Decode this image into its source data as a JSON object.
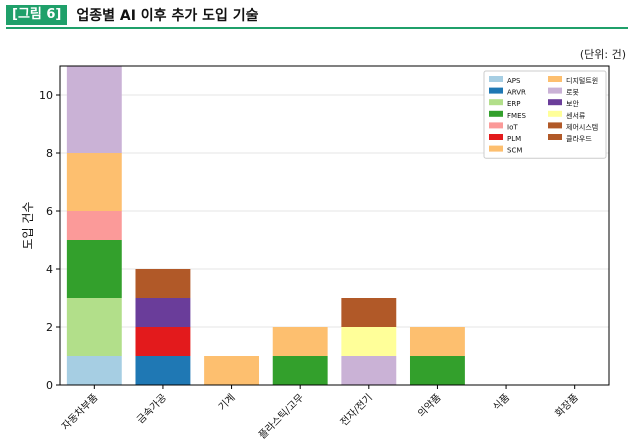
{
  "figure": {
    "tag": "[그림 6]",
    "title": "업종별 AI 이후 추가 도입 기술",
    "unit_note": "(단위: 건)"
  },
  "colors": {
    "header_accent": "#1fa06a"
  },
  "chart_data": {
    "type": "bar",
    "stacked": true,
    "ylabel": "도입 건수",
    "xlabel": "",
    "ylim": [
      0,
      11
    ],
    "yticks": [
      0,
      2,
      4,
      6,
      8,
      10
    ],
    "grid": true,
    "legend_position": "top-right",
    "categories": [
      "자동차부품",
      "금속가공",
      "기계",
      "플라스틱/고무",
      "전자/전기",
      "의약품",
      "식품",
      "화장품"
    ],
    "series": [
      {
        "name": "APS",
        "color": "#a6cee3",
        "values": [
          1,
          0,
          0,
          0,
          0,
          0,
          0,
          0
        ]
      },
      {
        "name": "ARVR",
        "color": "#1f78b4",
        "values": [
          0,
          1,
          0,
          0,
          0,
          0,
          0,
          0
        ]
      },
      {
        "name": "ERP",
        "color": "#b2df8a",
        "values": [
          2,
          0,
          0,
          0,
          0,
          0,
          0,
          0
        ]
      },
      {
        "name": "FMES",
        "color": "#33a02c",
        "values": [
          2,
          0,
          0,
          1,
          0,
          1,
          0,
          0
        ]
      },
      {
        "name": "IoT",
        "color": "#fb9a99",
        "values": [
          1,
          0,
          0,
          0,
          0,
          0,
          0,
          0
        ]
      },
      {
        "name": "PLM",
        "color": "#e31a1c",
        "values": [
          0,
          1,
          0,
          0,
          0,
          0,
          0,
          0
        ]
      },
      {
        "name": "SCM",
        "color": "#fdbf6f",
        "values": [
          0,
          0,
          0,
          0,
          0,
          0,
          0,
          0
        ]
      },
      {
        "name": "디지털트윈",
        "color": "#fdbf6f",
        "values": [
          2,
          0,
          1,
          1,
          0,
          1,
          0,
          0
        ]
      },
      {
        "name": "로봇",
        "color": "#cab2d6",
        "values": [
          3,
          0,
          0,
          0,
          1,
          0,
          0,
          0
        ]
      },
      {
        "name": "보안",
        "color": "#6a3d9a",
        "values": [
          0,
          1,
          0,
          0,
          0,
          0,
          0,
          0
        ]
      },
      {
        "name": "센서류",
        "color": "#ffff99",
        "values": [
          0,
          0,
          0,
          0,
          1,
          0,
          0,
          0
        ]
      },
      {
        "name": "제어시스템",
        "color": "#b15928",
        "values": [
          0,
          0,
          0,
          0,
          0,
          0,
          0,
          0
        ]
      },
      {
        "name": "클라우드",
        "color": "#b15928",
        "values": [
          0,
          1,
          0,
          0,
          1,
          0,
          0,
          0
        ]
      }
    ]
  }
}
